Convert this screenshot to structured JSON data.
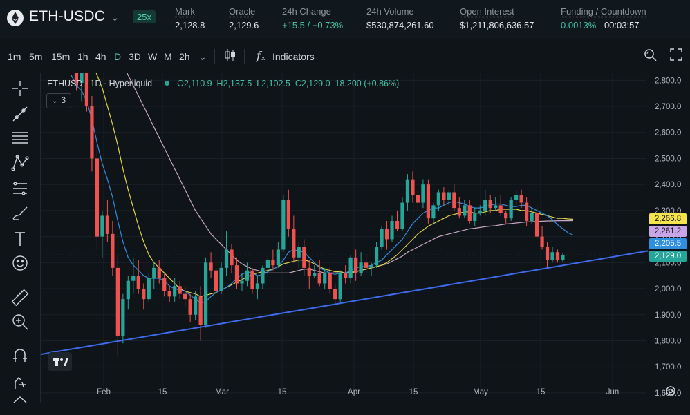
{
  "header": {
    "symbol": "ETH-USDC",
    "leverage": "25x",
    "stats": [
      {
        "label": "Mark",
        "value": "2,128.8"
      },
      {
        "label": "Oracle",
        "value": "2,129.6"
      },
      {
        "label": "24h Change",
        "value": "+15.5 / +0.73%"
      },
      {
        "label": "24h Volume",
        "value": "$530,874,261.60"
      },
      {
        "label": "Open Interest",
        "value": "$1,211,806,636.57"
      },
      {
        "label": "Funding / Countdown",
        "value": "0.0013%",
        "value2": "00:03:57"
      }
    ]
  },
  "toolbar": {
    "timeframes": [
      "1m",
      "5m",
      "15m",
      "1h",
      "4h",
      "D",
      "3D",
      "W",
      "M",
      "2h"
    ],
    "active_timeframe": "D",
    "indicators_label": "Indicators"
  },
  "legend": {
    "title": "ETHUSD · 1D · Hyperliquid",
    "ohlc": "O2,110.9  H2,137.5  L2,102.5  C2,129.0  18.200 (+0.86%)",
    "indicator_count": "3"
  },
  "colors": {
    "up": "#26a69a",
    "down": "#ef5350",
    "ma_fast": "#2f8fe0",
    "ma_mid": "#e2d64a",
    "ma_slow": "#c9a7c4",
    "trendline": "#3d6cf0"
  },
  "chart_data": {
    "type": "candlestick",
    "title": "ETHUSD · 1D · Hyperliquid",
    "x_ticks": [
      "Feb",
      "15",
      "Mar",
      "15",
      "Apr",
      "15",
      "May",
      "15",
      "Jun"
    ],
    "y_ticks": [
      2800,
      2700,
      2600,
      2500,
      2400,
      2300,
      2200,
      2100,
      2000,
      1900,
      1800,
      1700,
      1600
    ],
    "ylim": [
      1560,
      2830
    ],
    "price_tags": [
      {
        "label": "2,266.8",
        "value": 2266.8,
        "color": "#f6e44b"
      },
      {
        "label": "2,261.2",
        "value": 2261.2,
        "color": "#c9a6e8"
      },
      {
        "label": "2,205.5",
        "value": 2205.5,
        "color": "#2f8fe0"
      },
      {
        "label": "2,129.0",
        "value": 2129.0,
        "color": "#26a69a"
      }
    ],
    "candles_ohlc": [
      [
        2890,
        2950,
        2830,
        2860
      ],
      [
        2860,
        2900,
        2760,
        2790
      ],
      [
        2790,
        2860,
        2720,
        2840
      ],
      [
        2840,
        2870,
        2680,
        2700
      ],
      [
        2700,
        2740,
        2450,
        2500
      ],
      [
        2500,
        2560,
        2150,
        2200
      ],
      [
        2200,
        2300,
        2120,
        2280
      ],
      [
        2280,
        2340,
        2180,
        2210
      ],
      [
        2210,
        2260,
        2050,
        2080
      ],
      [
        2080,
        2130,
        1740,
        1820
      ],
      [
        1820,
        1980,
        1790,
        1960
      ],
      [
        1960,
        2050,
        1920,
        2030
      ],
      [
        2030,
        2120,
        1980,
        2050
      ],
      [
        2050,
        2110,
        1980,
        2000
      ],
      [
        2000,
        2020,
        1920,
        1960
      ],
      [
        1960,
        2060,
        1950,
        2040
      ],
      [
        2040,
        2100,
        2000,
        2080
      ],
      [
        2080,
        2110,
        2020,
        2040
      ],
      [
        2040,
        2060,
        1970,
        1990
      ],
      [
        1990,
        2010,
        1950,
        1970
      ],
      [
        1970,
        2040,
        1950,
        2010
      ],
      [
        2010,
        2030,
        1960,
        1980
      ],
      [
        1980,
        2010,
        1930,
        1960
      ],
      [
        1960,
        1980,
        1870,
        1900
      ],
      [
        1900,
        1990,
        1880,
        1970
      ],
      [
        1970,
        2010,
        1800,
        1860
      ],
      [
        1860,
        2120,
        1850,
        2100
      ],
      [
        2100,
        2140,
        2040,
        2070
      ],
      [
        2070,
        2080,
        1980,
        1990
      ],
      [
        1990,
        2100,
        1980,
        2080
      ],
      [
        2080,
        2220,
        2050,
        2150
      ],
      [
        2150,
        2170,
        2060,
        2090
      ],
      [
        2090,
        2120,
        2000,
        2020
      ],
      [
        2020,
        2060,
        1990,
        2030
      ],
      [
        2030,
        2100,
        2010,
        2070
      ],
      [
        2070,
        2080,
        1980,
        2000
      ],
      [
        2000,
        2050,
        1960,
        2020
      ],
      [
        2020,
        2090,
        2000,
        2080
      ],
      [
        2080,
        2130,
        2050,
        2110
      ],
      [
        2110,
        2150,
        2070,
        2090
      ],
      [
        2090,
        2180,
        2080,
        2150
      ],
      [
        2150,
        2360,
        2140,
        2340
      ],
      [
        2340,
        2380,
        2200,
        2230
      ],
      [
        2230,
        2280,
        2100,
        2120
      ],
      [
        2120,
        2180,
        2080,
        2160
      ],
      [
        2160,
        2190,
        2050,
        2080
      ],
      [
        2080,
        2110,
        2000,
        2050
      ],
      [
        2050,
        2090,
        2040,
        2060
      ],
      [
        2060,
        2110,
        2010,
        2020
      ],
      [
        2020,
        2080,
        2000,
        2060
      ],
      [
        2060,
        2080,
        1980,
        2000
      ],
      [
        2000,
        2020,
        1940,
        1960
      ],
      [
        1960,
        2070,
        1950,
        2060
      ],
      [
        2060,
        2090,
        2020,
        2040
      ],
      [
        2040,
        2130,
        2020,
        2120
      ],
      [
        2120,
        2150,
        2030,
        2060
      ],
      [
        2060,
        2140,
        2050,
        2100
      ],
      [
        2100,
        2130,
        2060,
        2080
      ],
      [
        2080,
        2100,
        2050,
        2090
      ],
      [
        2090,
        2180,
        2080,
        2160
      ],
      [
        2160,
        2240,
        2150,
        2230
      ],
      [
        2230,
        2260,
        2150,
        2190
      ],
      [
        2190,
        2280,
        2180,
        2260
      ],
      [
        2260,
        2300,
        2220,
        2230
      ],
      [
        2230,
        2350,
        2220,
        2330
      ],
      [
        2330,
        2440,
        2300,
        2420
      ],
      [
        2420,
        2450,
        2330,
        2360
      ],
      [
        2360,
        2380,
        2300,
        2330
      ],
      [
        2330,
        2420,
        2310,
        2400
      ],
      [
        2400,
        2420,
        2250,
        2270
      ],
      [
        2270,
        2330,
        2250,
        2320
      ],
      [
        2320,
        2380,
        2300,
        2370
      ],
      [
        2370,
        2390,
        2320,
        2340
      ],
      [
        2340,
        2380,
        2320,
        2370
      ],
      [
        2370,
        2400,
        2300,
        2310
      ],
      [
        2310,
        2350,
        2270,
        2280
      ],
      [
        2280,
        2340,
        2270,
        2320
      ],
      [
        2320,
        2340,
        2250,
        2260
      ],
      [
        2260,
        2310,
        2240,
        2290
      ],
      [
        2290,
        2320,
        2280,
        2300
      ],
      [
        2300,
        2380,
        2280,
        2340
      ],
      [
        2340,
        2360,
        2290,
        2310
      ],
      [
        2310,
        2350,
        2300,
        2320
      ],
      [
        2320,
        2360,
        2280,
        2290
      ],
      [
        2290,
        2300,
        2250,
        2270
      ],
      [
        2270,
        2350,
        2260,
        2340
      ],
      [
        2340,
        2380,
        2320,
        2360
      ],
      [
        2360,
        2380,
        2310,
        2330
      ],
      [
        2330,
        2350,
        2240,
        2260
      ],
      [
        2260,
        2310,
        2250,
        2290
      ],
      [
        2290,
        2320,
        2190,
        2200
      ],
      [
        2200,
        2240,
        2150,
        2160
      ],
      [
        2160,
        2180,
        2080,
        2110
      ],
      [
        2110,
        2160,
        2100,
        2140
      ],
      [
        2140,
        2150,
        2100,
        2110
      ],
      [
        2110,
        2137.5,
        2102.5,
        2129
      ]
    ],
    "ma_fast": [
      2820,
      2780,
      2760,
      2720,
      2650,
      2560,
      2480,
      2420,
      2350,
      2260,
      2180,
      2120,
      2090,
      2070,
      2050,
      2040,
      2040,
      2040,
      2030,
      2010,
      2000,
      1995,
      1990,
      1975,
      1960,
      1945,
      1950,
      1970,
      1985,
      1995,
      2005,
      2020,
      2040,
      2055,
      2065,
      2060,
      2050,
      2055,
      2065,
      2075,
      2085,
      2110,
      2140,
      2150,
      2145,
      2140,
      2120,
      2100,
      2080,
      2070,
      2060,
      2055,
      2060,
      2060,
      2070,
      2080,
      2085,
      2085,
      2090,
      2100,
      2110,
      2130,
      2150,
      2170,
      2190,
      2220,
      2250,
      2270,
      2290,
      2300,
      2310,
      2310,
      2320,
      2330,
      2335,
      2330,
      2325,
      2315,
      2310,
      2310,
      2315,
      2320,
      2325,
      2325,
      2320,
      2315,
      2315,
      2320,
      2320,
      2310,
      2300,
      2290,
      2280,
      2265,
      2245,
      2230,
      2215,
      2205.5
    ],
    "ma_mid": [
      2950,
      2940,
      2920,
      2900,
      2870,
      2820,
      2770,
      2700,
      2630,
      2550,
      2460,
      2380,
      2310,
      2240,
      2180,
      2130,
      2100,
      2080,
      2060,
      2040,
      2020,
      2000,
      1990,
      1985,
      1980,
      1970,
      1975,
      1980,
      1985,
      1995,
      2005,
      2015,
      2025,
      2035,
      2045,
      2055,
      2060,
      2065,
      2070,
      2075,
      2085,
      2095,
      2100,
      2105,
      2110,
      2110,
      2105,
      2095,
      2085,
      2075,
      2070,
      2065,
      2065,
      2060,
      2060,
      2065,
      2070,
      2075,
      2080,
      2085,
      2090,
      2100,
      2115,
      2130,
      2150,
      2170,
      2190,
      2210,
      2225,
      2240,
      2250,
      2260,
      2270,
      2280,
      2285,
      2290,
      2295,
      2295,
      2290,
      2290,
      2295,
      2300,
      2300,
      2305,
      2305,
      2305,
      2305,
      2300,
      2300,
      2295,
      2290,
      2285,
      2280,
      2275,
      2270,
      2270,
      2268,
      2266.8
    ],
    "ma_slow": [
      3100,
      3090,
      3080,
      3070,
      3060,
      3040,
      3010,
      2980,
      2940,
      2900,
      2860,
      2820,
      2780,
      2740,
      2700,
      2660,
      2620,
      2580,
      2540,
      2500,
      2460,
      2420,
      2380,
      2340,
      2300,
      2270,
      2240,
      2210,
      2190,
      2170,
      2150,
      2130,
      2110,
      2095,
      2085,
      2075,
      2070,
      2065,
      2060,
      2060,
      2060,
      2060,
      2060,
      2065,
      2070,
      2075,
      2075,
      2070,
      2065,
      2060,
      2060,
      2060,
      2060,
      2060,
      2065,
      2065,
      2070,
      2075,
      2080,
      2085,
      2090,
      2095,
      2105,
      2115,
      2125,
      2140,
      2150,
      2160,
      2170,
      2180,
      2190,
      2200,
      2205,
      2210,
      2215,
      2220,
      2225,
      2230,
      2232,
      2235,
      2238,
      2240,
      2242,
      2245,
      2248,
      2250,
      2252,
      2254,
      2256,
      2257,
      2258,
      2259,
      2260,
      2260,
      2261,
      2261,
      2261,
      2261.2
    ],
    "trendline": [
      {
        "x": 0,
        "y": 1748
      },
      {
        "x": 1,
        "y": 2145
      }
    ]
  }
}
